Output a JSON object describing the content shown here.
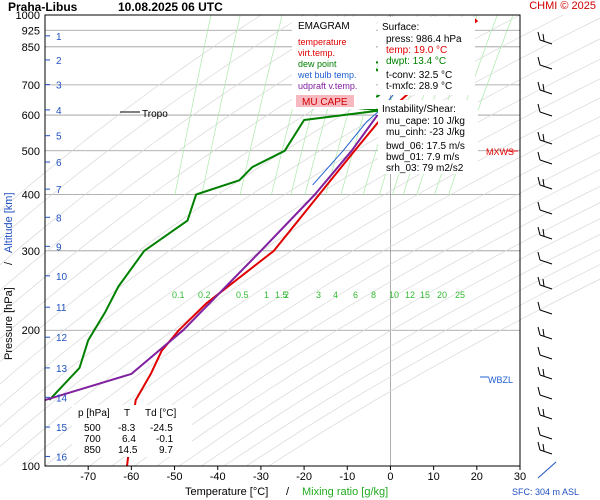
{
  "header": {
    "station": "Praha-Libus",
    "datetime": "10.08.2025 06 UTC",
    "copyright": "CHMI © 2025"
  },
  "legend": {
    "title": "EMAGRAM",
    "items": [
      {
        "label": "temperature",
        "color": "#e00000"
      },
      {
        "label": "virt.temp.",
        "color": "#e00000"
      },
      {
        "label": "dew point",
        "color": "#008000"
      },
      {
        "label": "wet bulb temp.",
        "color": "#2060d0"
      },
      {
        "label": "udpraft v.temp.",
        "color": "#8020a0"
      }
    ],
    "badge": "MU CAPE",
    "badge_bg": "#f7b8c0",
    "badge_color": "#d00000"
  },
  "surface_box": {
    "title": "Surface:",
    "lines": [
      {
        "text": "press: 986.4 hPa",
        "color": "#000000"
      },
      {
        "text": "temp: 19.0 °C",
        "color": "#e00000"
      },
      {
        "text": "dwpt: 13.4 °C",
        "color": "#008000"
      }
    ],
    "extra": [
      "t-conv: 32.5 °C",
      "t-mxfc: 28.9 °C"
    ]
  },
  "instability_box": {
    "title": "Instability/Shear:",
    "lines": [
      "mu_cape: 10 J/kg",
      "mu_cinh: -23 J/kg",
      "",
      "bwd_06: 17.5 m/s",
      "bwd_01: 7.9 m/s",
      "srh_03: 79 m2/s2"
    ]
  },
  "annotations": {
    "tropo": "Tropo",
    "mxws": "MXWS",
    "wbzl": "WBZL",
    "sfc": "SFC: 304 m ASL"
  },
  "level_table": {
    "headers": [
      "p [hPa]",
      "T",
      "Td [°C]"
    ],
    "rows": [
      [
        "500",
        "-8.3",
        "-24.5"
      ],
      [
        "700",
        "6.4",
        "-0.1"
      ],
      [
        "850",
        "14.5",
        "9.7"
      ]
    ]
  },
  "chart_data": {
    "type": "line",
    "xlabel": "Temperature [°C]",
    "xlabel2": "Mixing ratio [g/kg]",
    "ylabel": "Pressure [hPa]",
    "ylabel2": "Altitude [km]",
    "xlim": [
      -80,
      30
    ],
    "ylim": [
      1000,
      100
    ],
    "x_ticks": [
      -70,
      -60,
      -50,
      -40,
      -30,
      -20,
      -10,
      0,
      10,
      20,
      30
    ],
    "p_ticks": [
      100,
      200,
      300,
      400,
      500,
      600,
      700,
      850,
      925,
      1000
    ],
    "km_ticks": [
      {
        "km": "16",
        "p": 105
      },
      {
        "km": "15",
        "p": 122
      },
      {
        "km": "14",
        "p": 142
      },
      {
        "km": "13",
        "p": 165
      },
      {
        "km": "12",
        "p": 193
      },
      {
        "km": "11",
        "p": 225
      },
      {
        "km": "10",
        "p": 264
      },
      {
        "km": "9",
        "p": 307
      },
      {
        "km": "8",
        "p": 356
      },
      {
        "km": "7",
        "p": 411
      },
      {
        "km": "6",
        "p": 472
      },
      {
        "km": "5",
        "p": 540
      },
      {
        "km": "4",
        "p": 616
      },
      {
        "km": "3",
        "p": 701
      },
      {
        "km": "2",
        "p": 795
      },
      {
        "km": "1",
        "p": 899
      }
    ],
    "mixing_ratio_labels": [
      "0.1",
      "0.2",
      "0.5",
      "1",
      "1.5",
      "2",
      "3",
      "4",
      "6",
      "8",
      "10",
      "12",
      "15",
      "20",
      "25"
    ],
    "series": [
      {
        "name": "temperature",
        "color": "#e00000",
        "points": [
          [
            19.0,
            986.4
          ],
          [
            20.0,
            970
          ],
          [
            16.5,
            925
          ],
          [
            14.5,
            850
          ],
          [
            6.4,
            700
          ],
          [
            -1.5,
            600
          ],
          [
            -8.3,
            500
          ],
          [
            -16.5,
            400
          ],
          [
            -27.0,
            300
          ],
          [
            -42.5,
            230
          ],
          [
            -49.0,
            200
          ],
          [
            -53.0,
            180
          ],
          [
            -55.5,
            160
          ],
          [
            -59.0,
            140
          ],
          [
            -60.0,
            120
          ],
          [
            -61.0,
            100
          ]
        ]
      },
      {
        "name": "dew point",
        "color": "#008000",
        "points": [
          [
            13.4,
            986.4
          ],
          [
            12.0,
            950
          ],
          [
            8.0,
            925
          ],
          [
            9.7,
            850
          ],
          [
            5.0,
            800
          ],
          [
            -6.0,
            780
          ],
          [
            0.0,
            730
          ],
          [
            -0.1,
            700
          ],
          [
            -3.0,
            660
          ],
          [
            -22.0,
            640
          ],
          [
            -2.0,
            615
          ],
          [
            -20.0,
            585
          ],
          [
            -24.5,
            500
          ],
          [
            -32.0,
            460
          ],
          [
            -35.0,
            430
          ],
          [
            -45.0,
            400
          ],
          [
            -47.0,
            350
          ],
          [
            -57.0,
            300
          ],
          [
            -63.0,
            250
          ],
          [
            -66.0,
            220
          ],
          [
            -70.0,
            190
          ],
          [
            -72.0,
            165
          ],
          [
            -79.0,
            140
          ]
        ]
      },
      {
        "name": "wet bulb temp.",
        "color": "#2060d0",
        "points": [
          [
            15.5,
            986.4
          ],
          [
            14.0,
            950
          ],
          [
            11.0,
            900
          ],
          [
            10.5,
            850
          ],
          [
            5.5,
            750
          ],
          [
            2.5,
            700
          ],
          [
            -2.0,
            620
          ],
          [
            -5.5,
            580
          ],
          [
            -11.0,
            500
          ],
          [
            -18.0,
            420
          ]
        ]
      },
      {
        "name": "udpraft v.temp.",
        "color": "#8020a0",
        "points": [
          [
            -3.0,
            600
          ],
          [
            -9.0,
            500
          ],
          [
            -17.5,
            400
          ],
          [
            -30.0,
            300
          ],
          [
            -48.0,
            200
          ],
          [
            -60.0,
            160
          ],
          [
            -80.0,
            140
          ]
        ]
      }
    ]
  }
}
